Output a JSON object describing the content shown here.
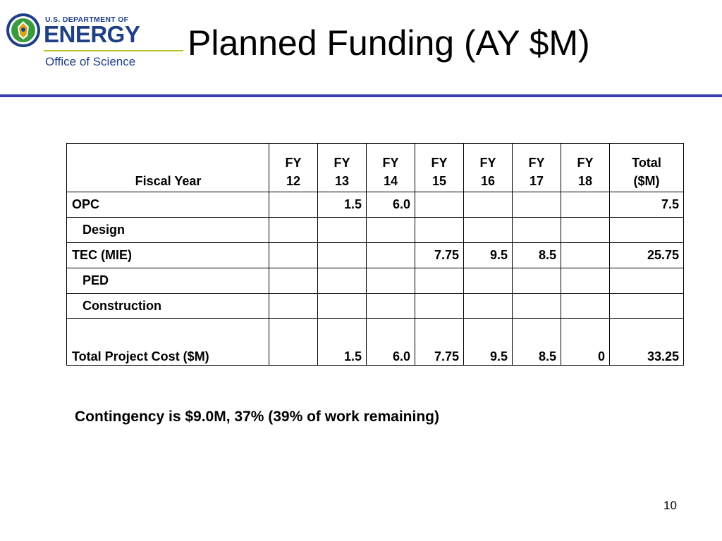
{
  "header": {
    "logo_dept": "U.S. DEPARTMENT OF",
    "logo_energy": "ENERGY",
    "logo_office": "Office of Science",
    "title": "Planned Funding (AY $M)"
  },
  "table": {
    "header": {
      "label": "Fiscal Year",
      "cols": [
        {
          "line1": "FY",
          "line2": "12"
        },
        {
          "line1": "FY",
          "line2": "13"
        },
        {
          "line1": "FY",
          "line2": "14"
        },
        {
          "line1": "FY",
          "line2": "15"
        },
        {
          "line1": "FY",
          "line2": "16"
        },
        {
          "line1": "FY",
          "line2": "17"
        },
        {
          "line1": "FY",
          "line2": "18"
        },
        {
          "line1": "Total",
          "line2": "($M)"
        }
      ]
    },
    "rows": [
      {
        "label": "OPC",
        "cells": [
          "",
          "1.5",
          "6.0",
          "",
          "",
          "",
          "",
          "7.5"
        ]
      },
      {
        "label": "Design",
        "cells": [
          "",
          "",
          "",
          "",
          "",
          "",
          "",
          ""
        ]
      },
      {
        "label": "TEC (MIE)",
        "cells": [
          "",
          "",
          "",
          "7.75",
          "9.5",
          "8.5",
          "",
          "25.75"
        ]
      },
      {
        "label": "PED",
        "cells": [
          "",
          "",
          "",
          "",
          "",
          "",
          "",
          ""
        ]
      },
      {
        "label": "Construction",
        "cells": [
          "",
          "",
          "",
          "",
          "",
          "",
          "",
          ""
        ]
      },
      {
        "label": "Total Project Cost ($M)",
        "cells": [
          "",
          "1.5",
          "6.0",
          "7.75",
          "9.5",
          "8.5",
          "0",
          "33.25"
        ]
      }
    ]
  },
  "note": "Contingency is $9.0M, 37% (39% of work remaining)",
  "page_number": "10",
  "colors": {
    "brand_blue": "#1f3f86",
    "brand_green": "#b9c21f",
    "rule_blue": "#3a3eb0"
  }
}
